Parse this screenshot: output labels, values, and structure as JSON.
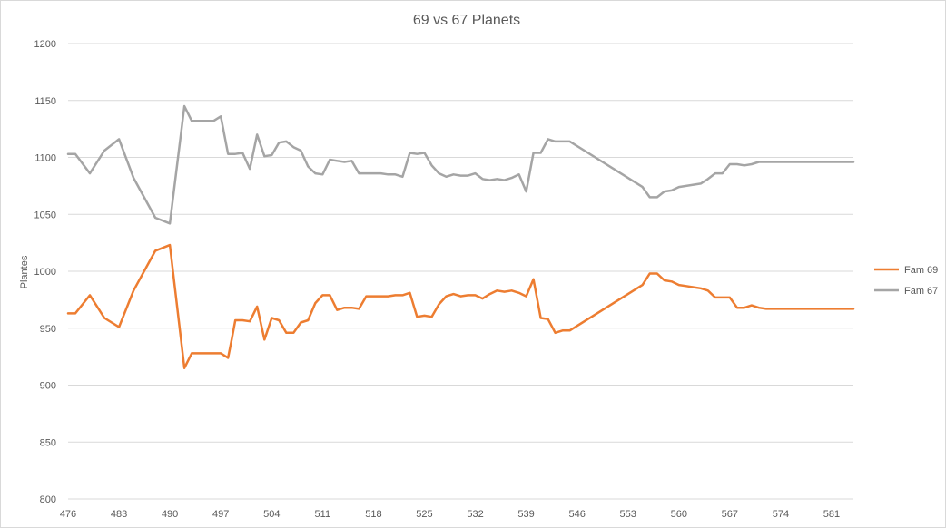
{
  "chart_data": {
    "type": "line",
    "title": "69 vs 67 Planets",
    "xlabel": "",
    "ylabel": "Plantes",
    "ylim": [
      800,
      1200
    ],
    "yticks": [
      800,
      850,
      900,
      950,
      1000,
      1050,
      1100,
      1150,
      1200
    ],
    "xlim": [
      476,
      584
    ],
    "xticks": [
      476,
      483,
      490,
      497,
      504,
      511,
      518,
      525,
      532,
      539,
      546,
      553,
      560,
      567,
      574,
      581
    ],
    "grid": true,
    "legend_position": "right",
    "series": [
      {
        "name": "Fam 69",
        "color": "#ed7d31",
        "x": [
          476,
          477,
          479,
          481,
          483,
          485,
          488,
          490,
          492,
          493,
          495,
          496,
          497,
          498,
          498.5,
          499,
          500,
          501,
          502,
          503,
          504,
          505,
          506,
          507,
          508,
          509,
          510,
          511,
          512,
          513,
          514,
          515,
          516,
          517,
          518,
          519,
          520,
          521,
          522,
          523,
          524,
          525,
          526,
          527,
          528,
          529,
          530,
          531,
          532,
          533,
          534,
          535,
          536,
          537,
          538,
          539,
          540,
          541,
          542,
          543,
          544,
          545,
          555,
          556,
          557,
          558,
          559,
          560,
          561,
          562,
          563,
          564,
          565,
          566,
          567,
          568,
          569,
          570,
          571,
          572,
          573,
          574,
          575,
          576,
          577,
          578,
          579,
          580,
          581,
          582,
          583,
          584
        ],
        "y": [
          963,
          963,
          979,
          959,
          951,
          983,
          1018,
          1023,
          915,
          928,
          928,
          928,
          928,
          924,
          940,
          957,
          957,
          956,
          969,
          940,
          959,
          957,
          946,
          946,
          955,
          957,
          972,
          979,
          979,
          966,
          968,
          968,
          967,
          978,
          978,
          978,
          978,
          979,
          979,
          981,
          960,
          961,
          960,
          971,
          978,
          980,
          978,
          979,
          979,
          976,
          980,
          983,
          982,
          983,
          981,
          978,
          993,
          959,
          958,
          946,
          948,
          948,
          988,
          998,
          998,
          992,
          991,
          988,
          987,
          986,
          985,
          983,
          977,
          977,
          977,
          968,
          968,
          970,
          968,
          967,
          967,
          967,
          967,
          967,
          967,
          967,
          967,
          967,
          967,
          967,
          967,
          967
        ]
      },
      {
        "name": "Fam 67",
        "color": "#a5a5a5",
        "x": [
          476,
          477,
          479,
          481,
          483,
          485,
          488,
          490,
          492,
          493,
          495,
          496,
          497,
          498,
          498.5,
          499,
          500,
          501,
          502,
          503,
          504,
          505,
          506,
          507,
          508,
          509,
          510,
          511,
          512,
          513,
          514,
          515,
          516,
          517,
          518,
          519,
          520,
          521,
          522,
          523,
          524,
          525,
          526,
          527,
          528,
          529,
          530,
          531,
          532,
          533,
          534,
          535,
          536,
          537,
          538,
          539,
          540,
          541,
          542,
          543,
          544,
          545,
          555,
          556,
          557,
          558,
          559,
          560,
          561,
          562,
          563,
          564,
          565,
          566,
          567,
          568,
          569,
          570,
          571,
          572,
          573,
          574,
          575,
          576,
          577,
          578,
          579,
          580,
          581,
          582,
          583,
          584
        ],
        "y": [
          1103,
          1103,
          1086,
          1106,
          1116,
          1082,
          1047,
          1042,
          1145,
          1132,
          1132,
          1132,
          1136,
          1103,
          1103,
          1103,
          1104,
          1090,
          1120,
          1101,
          1102,
          1113,
          1114,
          1109,
          1106,
          1092,
          1086,
          1085,
          1098,
          1097,
          1096,
          1097,
          1086,
          1086,
          1086,
          1086,
          1085,
          1085,
          1083,
          1104,
          1103,
          1104,
          1093,
          1086,
          1083,
          1085,
          1084,
          1084,
          1086,
          1081,
          1080,
          1081,
          1080,
          1082,
          1085,
          1070,
          1104,
          1104,
          1116,
          1114,
          1114,
          1114,
          1074,
          1065,
          1065,
          1070,
          1071,
          1074,
          1075,
          1076,
          1077,
          1081,
          1086,
          1086,
          1094,
          1094,
          1093,
          1094,
          1096,
          1096,
          1096,
          1096,
          1096,
          1096,
          1096,
          1096,
          1096,
          1096,
          1096,
          1096,
          1096,
          1096
        ]
      }
    ]
  }
}
